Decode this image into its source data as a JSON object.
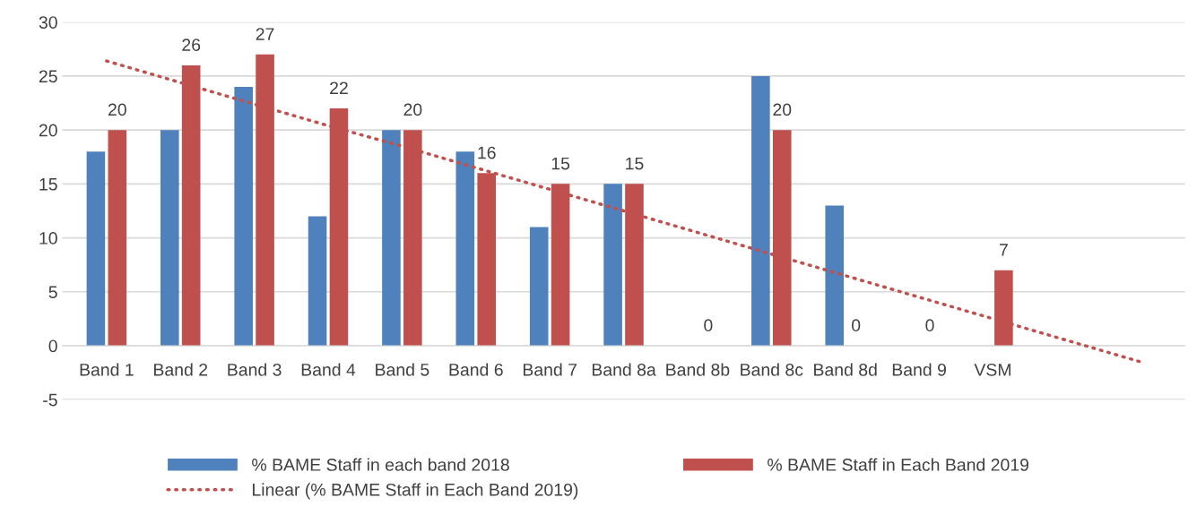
{
  "chart_data": {
    "type": "bar",
    "categories": [
      "Band 1",
      "Band 2",
      "Band 3",
      "Band 4",
      "Band 5",
      "Band 6",
      "Band 7",
      "Band 8a",
      "Band 8b",
      "Band 8c",
      "Band 8d",
      "Band 9",
      "VSM",
      null,
      null
    ],
    "series": [
      {
        "name": "% BAME Staff in each band 2018",
        "color": "#4f81bd",
        "values": [
          18,
          20,
          24,
          12,
          20,
          18,
          11,
          15,
          null,
          25,
          13,
          null,
          null,
          null,
          null
        ]
      },
      {
        "name": "% BAME Staff in Each Band 2019",
        "color": "#c0504d",
        "values": [
          20,
          26,
          27,
          22,
          20,
          16,
          15,
          15,
          0,
          20,
          0,
          0,
          7,
          null,
          null
        ],
        "value_labels": [
          "20",
          "26",
          "27",
          "22",
          "20",
          "16",
          "15",
          "15",
          "0",
          "20",
          "0",
          "0",
          "7",
          null,
          null
        ]
      },
      {
        "name": "Linear (% BAME Staff in Each Band 2019)",
        "type": "line",
        "color": "#c0504d",
        "line_style": "dotted",
        "marker": "none",
        "values": [
          26.4,
          24.4,
          22.4,
          20.4,
          18.5,
          16.5,
          14.5,
          12.5,
          10.5,
          8.5,
          6.5,
          4.5,
          2.5,
          0.5,
          -1.5
        ]
      }
    ],
    "ylim": [
      -5,
      30
    ],
    "yticks": [
      -5,
      0,
      5,
      10,
      15,
      20,
      25,
      30
    ],
    "grid": "y",
    "legend": "bottom"
  }
}
